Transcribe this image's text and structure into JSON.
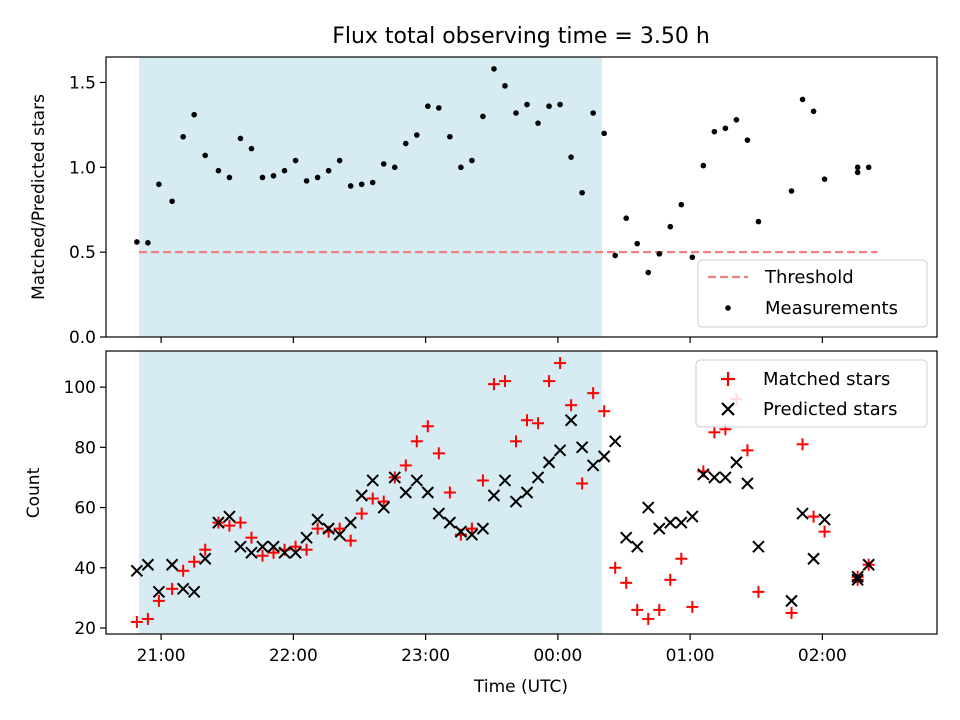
{
  "chart_data": [
    {
      "type": "scatter",
      "title": "Flux total observing time = 3.50 h",
      "ylabel": "Matched/Predicted stars",
      "xlabel": "",
      "xlim": [
        "20:35",
        "02:52"
      ],
      "ylim": [
        0,
        1.65
      ],
      "x_ticks": [
        "21:00",
        "22:00",
        "23:00",
        "00:00",
        "01:00",
        "02:00"
      ],
      "y_ticks": [
        "0.0",
        "0.5",
        "1.0",
        "1.5"
      ],
      "shaded_span": {
        "from": "20:50",
        "to": "00:20",
        "color": "#add8e6"
      },
      "threshold": {
        "name": "Threshold",
        "value": 0.5,
        "from": "20:50",
        "to": "02:25",
        "color": "#f08080",
        "style": "dashed"
      },
      "series": [
        {
          "name": "Measurements",
          "marker": "dot",
          "color": "#000000",
          "points": [
            [
              "20:49",
              0.56
            ],
            [
              "20:54",
              0.555
            ],
            [
              "20:59",
              0.9
            ],
            [
              "21:05",
              0.8
            ],
            [
              "21:10",
              1.18
            ],
            [
              "21:15",
              1.31
            ],
            [
              "21:20",
              1.07
            ],
            [
              "21:26",
              0.98
            ],
            [
              "21:31",
              0.94
            ],
            [
              "21:36",
              1.17
            ],
            [
              "21:41",
              1.11
            ],
            [
              "21:46",
              0.94
            ],
            [
              "21:51",
              0.95
            ],
            [
              "21:56",
              0.98
            ],
            [
              "22:01",
              1.04
            ],
            [
              "22:06",
              0.92
            ],
            [
              "22:11",
              0.94
            ],
            [
              "22:16",
              0.98
            ],
            [
              "22:21",
              1.04
            ],
            [
              "22:26",
              0.89
            ],
            [
              "22:31",
              0.9
            ],
            [
              "22:36",
              0.91
            ],
            [
              "22:41",
              1.02
            ],
            [
              "22:46",
              1.0
            ],
            [
              "22:51",
              1.14
            ],
            [
              "22:56",
              1.19
            ],
            [
              "23:01",
              1.36
            ],
            [
              "23:06",
              1.35
            ],
            [
              "23:11",
              1.18
            ],
            [
              "23:16",
              1.0
            ],
            [
              "23:21",
              1.04
            ],
            [
              "23:26",
              1.3
            ],
            [
              "23:31",
              1.58
            ],
            [
              "23:36",
              1.48
            ],
            [
              "23:41",
              1.32
            ],
            [
              "23:46",
              1.37
            ],
            [
              "23:51",
              1.26
            ],
            [
              "23:56",
              1.36
            ],
            [
              "00:01",
              1.37
            ],
            [
              "00:06",
              1.06
            ],
            [
              "00:11",
              0.85
            ],
            [
              "00:16",
              1.32
            ],
            [
              "00:21",
              1.2
            ],
            [
              "00:26",
              0.48
            ],
            [
              "00:31",
              0.7
            ],
            [
              "00:36",
              0.55
            ],
            [
              "00:41",
              0.38
            ],
            [
              "00:46",
              0.49
            ],
            [
              "00:51",
              0.65
            ],
            [
              "00:56",
              0.78
            ],
            [
              "01:01",
              0.47
            ],
            [
              "01:06",
              1.01
            ],
            [
              "01:11",
              1.21
            ],
            [
              "01:16",
              1.23
            ],
            [
              "01:21",
              1.28
            ],
            [
              "01:26",
              1.16
            ],
            [
              "01:31",
              0.68
            ],
            [
              "01:46",
              0.86
            ],
            [
              "01:51",
              1.4
            ],
            [
              "01:56",
              1.33
            ],
            [
              "02:01",
              0.93
            ],
            [
              "02:16",
              0.97
            ],
            [
              "02:16",
              1.0
            ],
            [
              "02:21",
              1.0
            ]
          ]
        }
      ],
      "legend": {
        "placement": "lower-right",
        "entries": [
          "Threshold",
          "Measurements"
        ]
      }
    },
    {
      "type": "scatter",
      "title": "",
      "xlabel": "Time (UTC)",
      "ylabel": "Count",
      "xlim": [
        "20:35",
        "02:52"
      ],
      "ylim": [
        18,
        112
      ],
      "x_ticks": [
        "21:00",
        "22:00",
        "23:00",
        "00:00",
        "01:00",
        "02:00"
      ],
      "y_ticks": [
        "20",
        "40",
        "60",
        "80",
        "100"
      ],
      "shaded_span": {
        "from": "20:50",
        "to": "00:20",
        "color": "#add8e6"
      },
      "series": [
        {
          "name": "Matched stars",
          "marker": "plus",
          "color": "#ff0000",
          "points": [
            [
              "20:49",
              22
            ],
            [
              "20:54",
              23
            ],
            [
              "20:59",
              29
            ],
            [
              "21:05",
              33
            ],
            [
              "21:10",
              39
            ],
            [
              "21:15",
              42
            ],
            [
              "21:20",
              46
            ],
            [
              "21:26",
              55
            ],
            [
              "21:31",
              54
            ],
            [
              "21:36",
              55
            ],
            [
              "21:41",
              50
            ],
            [
              "21:46",
              44
            ],
            [
              "21:51",
              45
            ],
            [
              "21:56",
              46
            ],
            [
              "22:01",
              47
            ],
            [
              "22:06",
              46
            ],
            [
              "22:11",
              53
            ],
            [
              "22:16",
              52
            ],
            [
              "22:21",
              53
            ],
            [
              "22:26",
              49
            ],
            [
              "22:31",
              58
            ],
            [
              "22:36",
              63
            ],
            [
              "22:41",
              62
            ],
            [
              "22:46",
              70
            ],
            [
              "22:51",
              74
            ],
            [
              "22:56",
              82
            ],
            [
              "23:01",
              87
            ],
            [
              "23:06",
              78
            ],
            [
              "23:11",
              65
            ],
            [
              "23:16",
              51
            ],
            [
              "23:21",
              53
            ],
            [
              "23:26",
              69
            ],
            [
              "23:31",
              101
            ],
            [
              "23:36",
              102
            ],
            [
              "23:41",
              82
            ],
            [
              "23:46",
              89
            ],
            [
              "23:51",
              88
            ],
            [
              "23:56",
              102
            ],
            [
              "00:01",
              108
            ],
            [
              "00:06",
              94
            ],
            [
              "00:11",
              68
            ],
            [
              "00:16",
              98
            ],
            [
              "00:21",
              92
            ],
            [
              "00:26",
              40
            ],
            [
              "00:31",
              35
            ],
            [
              "00:36",
              26
            ],
            [
              "00:41",
              23
            ],
            [
              "00:46",
              26
            ],
            [
              "00:51",
              36
            ],
            [
              "00:56",
              43
            ],
            [
              "01:01",
              27
            ],
            [
              "01:06",
              72
            ],
            [
              "01:11",
              85
            ],
            [
              "01:16",
              86
            ],
            [
              "01:21",
              96
            ],
            [
              "01:26",
              79
            ],
            [
              "01:31",
              32
            ],
            [
              "01:46",
              25
            ],
            [
              "01:51",
              81
            ],
            [
              "01:56",
              57
            ],
            [
              "02:01",
              52
            ],
            [
              "02:16",
              37
            ],
            [
              "02:16",
              36
            ],
            [
              "02:21",
              41
            ]
          ]
        },
        {
          "name": "Predicted stars",
          "marker": "x",
          "color": "#000000",
          "points": [
            [
              "20:49",
              39
            ],
            [
              "20:54",
              41
            ],
            [
              "20:59",
              32
            ],
            [
              "21:05",
              41
            ],
            [
              "21:10",
              33
            ],
            [
              "21:15",
              32
            ],
            [
              "21:20",
              43
            ],
            [
              "21:26",
              55
            ],
            [
              "21:31",
              57
            ],
            [
              "21:36",
              47
            ],
            [
              "21:41",
              45
            ],
            [
              "21:46",
              47
            ],
            [
              "21:51",
              47
            ],
            [
              "21:56",
              45
            ],
            [
              "22:01",
              45
            ],
            [
              "22:06",
              50
            ],
            [
              "22:11",
              56
            ],
            [
              "22:16",
              53
            ],
            [
              "22:21",
              51
            ],
            [
              "22:26",
              55
            ],
            [
              "22:31",
              64
            ],
            [
              "22:36",
              69
            ],
            [
              "22:41",
              60
            ],
            [
              "22:46",
              70
            ],
            [
              "22:51",
              65
            ],
            [
              "22:56",
              69
            ],
            [
              "23:01",
              65
            ],
            [
              "23:06",
              58
            ],
            [
              "23:11",
              55
            ],
            [
              "23:16",
              52
            ],
            [
              "23:21",
              51
            ],
            [
              "23:26",
              53
            ],
            [
              "23:31",
              64
            ],
            [
              "23:36",
              69
            ],
            [
              "23:41",
              62
            ],
            [
              "23:46",
              65
            ],
            [
              "23:51",
              70
            ],
            [
              "23:56",
              75
            ],
            [
              "00:01",
              79
            ],
            [
              "00:06",
              89
            ],
            [
              "00:11",
              80
            ],
            [
              "00:16",
              74
            ],
            [
              "00:21",
              77
            ],
            [
              "00:26",
              82
            ],
            [
              "00:31",
              50
            ],
            [
              "00:36",
              47
            ],
            [
              "00:41",
              60
            ],
            [
              "00:46",
              53
            ],
            [
              "00:51",
              55
            ],
            [
              "00:56",
              55
            ],
            [
              "01:01",
              57
            ],
            [
              "01:06",
              71
            ],
            [
              "01:11",
              70
            ],
            [
              "01:16",
              70
            ],
            [
              "01:21",
              75
            ],
            [
              "01:26",
              68
            ],
            [
              "01:31",
              47
            ],
            [
              "01:46",
              29
            ],
            [
              "01:51",
              58
            ],
            [
              "01:56",
              43
            ],
            [
              "02:01",
              56
            ],
            [
              "02:16",
              37
            ],
            [
              "02:16",
              36
            ],
            [
              "02:21",
              41
            ]
          ]
        }
      ],
      "legend": {
        "placement": "upper-right",
        "entries": [
          "Matched stars",
          "Predicted stars"
        ]
      }
    }
  ]
}
